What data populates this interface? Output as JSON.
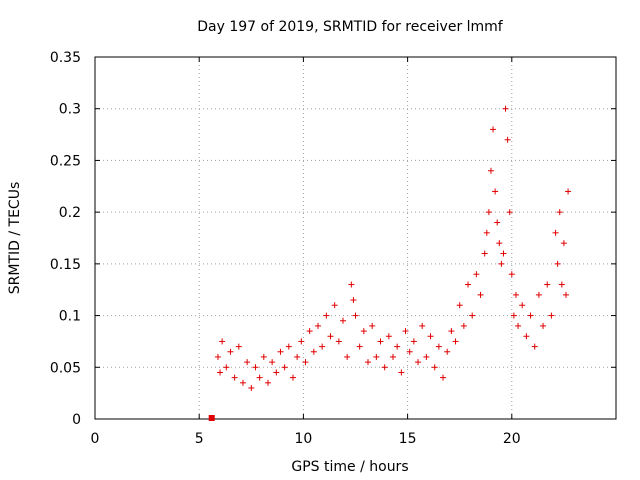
{
  "chart_data": {
    "type": "scatter",
    "title": "Day 197 of 2019, SRMTID for receiver lmmf",
    "xlabel": "GPS time / hours",
    "ylabel": "SRMTID / TECUs",
    "xlim": [
      0,
      25
    ],
    "ylim": [
      0,
      0.35
    ],
    "xticks": [
      0,
      5,
      10,
      15,
      20
    ],
    "yticks": [
      0,
      0.05,
      0.1,
      0.15,
      0.2,
      0.25,
      0.3,
      0.35
    ],
    "grid": true,
    "marker": "plus",
    "series": [
      {
        "name": "SRMTID",
        "color": "#e00000",
        "x": [
          5.9,
          6.0,
          6.1,
          6.3,
          6.5,
          6.7,
          6.9,
          7.1,
          7.3,
          7.5,
          7.7,
          7.9,
          8.1,
          8.3,
          8.5,
          8.7,
          8.9,
          9.1,
          9.3,
          9.5,
          9.7,
          9.9,
          10.1,
          10.3,
          10.5,
          10.7,
          10.9,
          11.1,
          11.3,
          11.5,
          11.7,
          11.9,
          12.1,
          12.3,
          12.4,
          12.5,
          12.7,
          12.9,
          13.1,
          13.3,
          13.5,
          13.7,
          13.9,
          14.1,
          14.3,
          14.5,
          14.7,
          14.9,
          15.1,
          15.3,
          15.5,
          15.7,
          15.9,
          16.1,
          16.3,
          16.5,
          16.7,
          16.9,
          17.1,
          17.3,
          17.5,
          17.7,
          17.9,
          18.1,
          18.3,
          18.5,
          18.7,
          18.8,
          18.9,
          19.0,
          19.1,
          19.2,
          19.3,
          19.4,
          19.5,
          19.6,
          19.7,
          19.8,
          19.9,
          20.0,
          20.1,
          20.2,
          20.3,
          20.5,
          20.7,
          20.9,
          21.1,
          21.3,
          21.5,
          21.7,
          21.9,
          22.1,
          22.2,
          22.3,
          22.4,
          22.5,
          22.6,
          22.7
        ],
        "y": [
          0.06,
          0.045,
          0.075,
          0.05,
          0.065,
          0.04,
          0.07,
          0.035,
          0.055,
          0.03,
          0.05,
          0.04,
          0.06,
          0.035,
          0.055,
          0.045,
          0.065,
          0.05,
          0.07,
          0.04,
          0.06,
          0.075,
          0.055,
          0.085,
          0.065,
          0.09,
          0.07,
          0.1,
          0.08,
          0.11,
          0.075,
          0.095,
          0.06,
          0.13,
          0.115,
          0.1,
          0.07,
          0.085,
          0.055,
          0.09,
          0.06,
          0.075,
          0.05,
          0.08,
          0.06,
          0.07,
          0.045,
          0.085,
          0.065,
          0.075,
          0.055,
          0.09,
          0.06,
          0.08,
          0.05,
          0.07,
          0.04,
          0.065,
          0.085,
          0.075,
          0.11,
          0.09,
          0.13,
          0.1,
          0.14,
          0.12,
          0.16,
          0.18,
          0.2,
          0.24,
          0.28,
          0.22,
          0.19,
          0.17,
          0.15,
          0.16,
          0.3,
          0.27,
          0.2,
          0.14,
          0.1,
          0.12,
          0.09,
          0.11,
          0.08,
          0.1,
          0.07,
          0.12,
          0.09,
          0.13,
          0.1,
          0.18,
          0.15,
          0.2,
          0.13,
          0.17,
          0.12,
          0.22
        ]
      }
    ],
    "extra_point": {
      "x": 5.6,
      "y": 0.0,
      "marker": "square"
    }
  }
}
